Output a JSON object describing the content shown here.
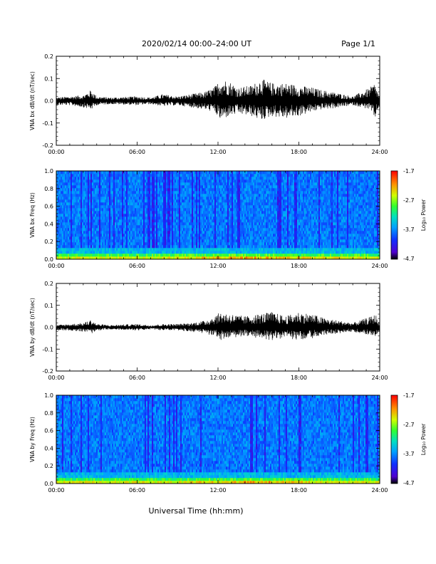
{
  "header": {
    "date_range": "2020/02/14  00:00–24:00 UT",
    "page": "Page 1/1"
  },
  "x_axis_title": "Universal Time (hh:mm)",
  "colorbar": {
    "label": "Log₁₀ Power",
    "ticks": [
      "-1.7",
      "-2.7",
      "-3.7",
      "-4.7"
    ],
    "range": [
      -4.7,
      -1.7
    ],
    "colors": [
      "#000000",
      "#4000ff",
      "#0040ff",
      "#00c0ff",
      "#00ffa0",
      "#40ff00",
      "#ffff00",
      "#ff8000",
      "#ff0000"
    ]
  },
  "chart_data": [
    {
      "type": "line",
      "ylabel": "VNA bx dB/dt (nT/sec)",
      "xlim": [
        0,
        24
      ],
      "ylim": [
        -0.2,
        0.2
      ],
      "x_ticks": [
        "00:00",
        "06:00",
        "12:00",
        "18:00",
        "24:00"
      ],
      "y_ticks": [
        "0.2",
        "0.1",
        "0.0",
        "-0.1",
        "-0.2"
      ],
      "envelope_hours": [
        0,
        1,
        2,
        2.6,
        3,
        4,
        6,
        7,
        7.9,
        9,
        10,
        11,
        11.7,
        12.2,
        12.8,
        13.5,
        14.5,
        15.2,
        16,
        17,
        18,
        19,
        19.6,
        20.5,
        22,
        23.3,
        23.6,
        24
      ],
      "envelope_max": [
        0.015,
        0.02,
        0.025,
        0.05,
        0.02,
        0.015,
        0.02,
        0.015,
        0.03,
        0.02,
        0.03,
        0.04,
        0.06,
        0.1,
        0.09,
        0.06,
        0.07,
        0.1,
        0.08,
        0.08,
        0.07,
        0.06,
        0.05,
        0.04,
        0.02,
        0.06,
        0.08,
        0.02
      ],
      "envelope_min": [
        -0.02,
        -0.02,
        -0.03,
        -0.04,
        -0.02,
        -0.015,
        -0.02,
        -0.015,
        -0.025,
        -0.02,
        -0.03,
        -0.04,
        -0.05,
        -0.09,
        -0.07,
        -0.06,
        -0.07,
        -0.09,
        -0.07,
        -0.08,
        -0.07,
        -0.05,
        -0.04,
        -0.035,
        -0.02,
        -0.04,
        -0.09,
        -0.02
      ]
    },
    {
      "type": "heatmap",
      "ylabel": "VNA bx Freq (Hz)",
      "xlim": [
        0,
        24
      ],
      "ylim": [
        0,
        1.0
      ],
      "x_ticks": [
        "00:00",
        "06:00",
        "12:00",
        "18:00",
        "24:00"
      ],
      "y_ticks": [
        "1.0",
        "0.8",
        "0.6",
        "0.4",
        "0.2",
        "0.0"
      ],
      "zlim": [
        -4.7,
        -1.7
      ]
    },
    {
      "type": "line",
      "ylabel": "VNA by dB/dt (nT/sec)",
      "xlim": [
        0,
        24
      ],
      "ylim": [
        -0.2,
        0.2
      ],
      "x_ticks": [
        "00:00",
        "06:00",
        "12:00",
        "18:00",
        "24:00"
      ],
      "y_ticks": [
        "0.2",
        "0.1",
        "0.0",
        "-0.1",
        "-0.2"
      ],
      "envelope_hours": [
        0,
        1,
        2,
        2.6,
        3,
        4,
        6,
        7,
        8,
        9,
        10,
        11,
        11.7,
        12.2,
        13,
        14,
        15,
        16,
        17,
        18,
        19,
        20,
        21,
        22,
        23.4,
        23.7,
        24
      ],
      "envelope_max": [
        0.01,
        0.015,
        0.02,
        0.035,
        0.015,
        0.01,
        0.015,
        0.01,
        0.015,
        0.015,
        0.02,
        0.03,
        0.05,
        0.07,
        0.06,
        0.05,
        0.06,
        0.07,
        0.05,
        0.07,
        0.06,
        0.04,
        0.03,
        0.02,
        0.05,
        0.06,
        0.015
      ],
      "envelope_min": [
        -0.015,
        -0.015,
        -0.02,
        -0.03,
        -0.015,
        -0.01,
        -0.015,
        -0.01,
        -0.015,
        -0.015,
        -0.02,
        -0.03,
        -0.04,
        -0.06,
        -0.05,
        -0.04,
        -0.05,
        -0.06,
        -0.05,
        -0.06,
        -0.05,
        -0.035,
        -0.03,
        -0.02,
        -0.04,
        -0.05,
        -0.015
      ]
    },
    {
      "type": "heatmap",
      "ylabel": "VNA by Freq (Hz)",
      "xlim": [
        0,
        24
      ],
      "ylim": [
        0,
        1.0
      ],
      "x_ticks": [
        "00:00",
        "06:00",
        "12:00",
        "18:00",
        "24:00"
      ],
      "y_ticks": [
        "1.0",
        "0.8",
        "0.6",
        "0.4",
        "0.2",
        "0.0"
      ],
      "zlim": [
        -4.7,
        -1.7
      ]
    }
  ]
}
